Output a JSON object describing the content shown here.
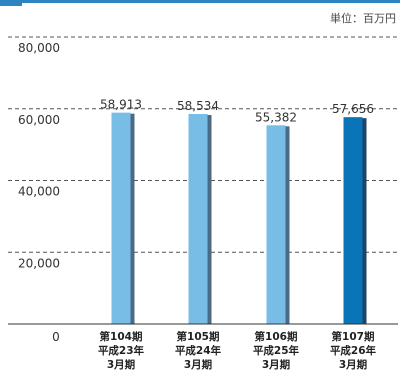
{
  "unit": "単位：百万円",
  "chart_data": {
    "type": "bar",
    "categories": [
      [
        "第104期",
        "平成23年",
        "3月期"
      ],
      [
        "第105期",
        "平成24年",
        "3月期"
      ],
      [
        "第106期",
        "平成25年",
        "3月期"
      ],
      [
        "第107期",
        "平成26年",
        "3月期"
      ]
    ],
    "values": [
      58913,
      58534,
      55382,
      57656
    ],
    "value_labels": [
      "58,913",
      "58,534",
      "55,382",
      "57,656"
    ],
    "highlight_index": 3,
    "ylim": [
      0,
      80000
    ],
    "yticks": [
      0,
      20000,
      40000,
      60000,
      80000
    ],
    "ytick_labels": [
      "0",
      "20,000",
      "40,000",
      "60,000",
      "80,000"
    ],
    "grid": true,
    "colors": {
      "bar": "#78bde6",
      "bar_shadow": "#4a6a86",
      "bar_highlight": "#0a74b8",
      "bar_highlight_shadow": "#1d4468",
      "top_rule": "#2d84c0"
    }
  }
}
